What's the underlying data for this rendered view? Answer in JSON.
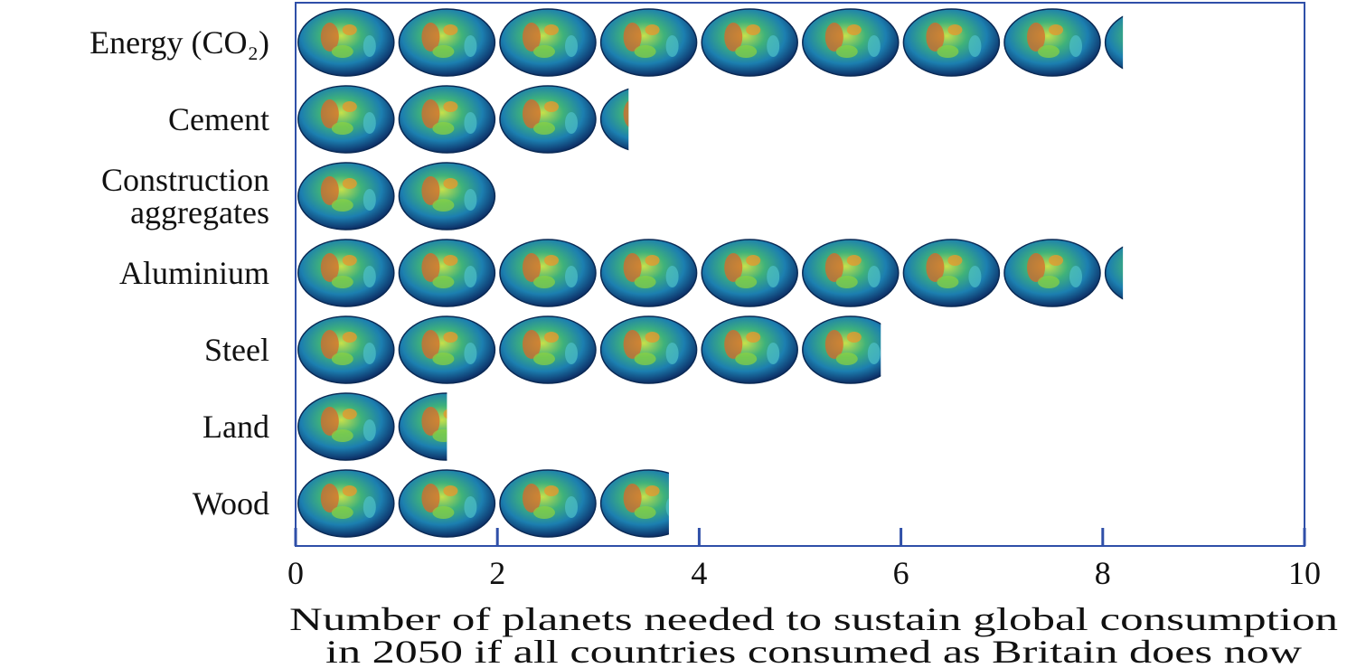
{
  "chart_data": {
    "type": "pictogram_bar",
    "categories": [
      "Energy (CO₂)",
      "Cement",
      "Construction aggregates",
      "Aluminium",
      "Steel",
      "Land",
      "Wood"
    ],
    "values": [
      8.2,
      3.3,
      2.0,
      8.2,
      5.8,
      1.5,
      3.7
    ],
    "xlim": [
      0,
      10
    ],
    "xticks": [
      0,
      2,
      4,
      6,
      8,
      10
    ],
    "x_label": [
      "Number of planets needed to sustain global consumption",
      "in 2050 if all countries consumed as Britain does now"
    ],
    "color": "#2f4fa8"
  }
}
